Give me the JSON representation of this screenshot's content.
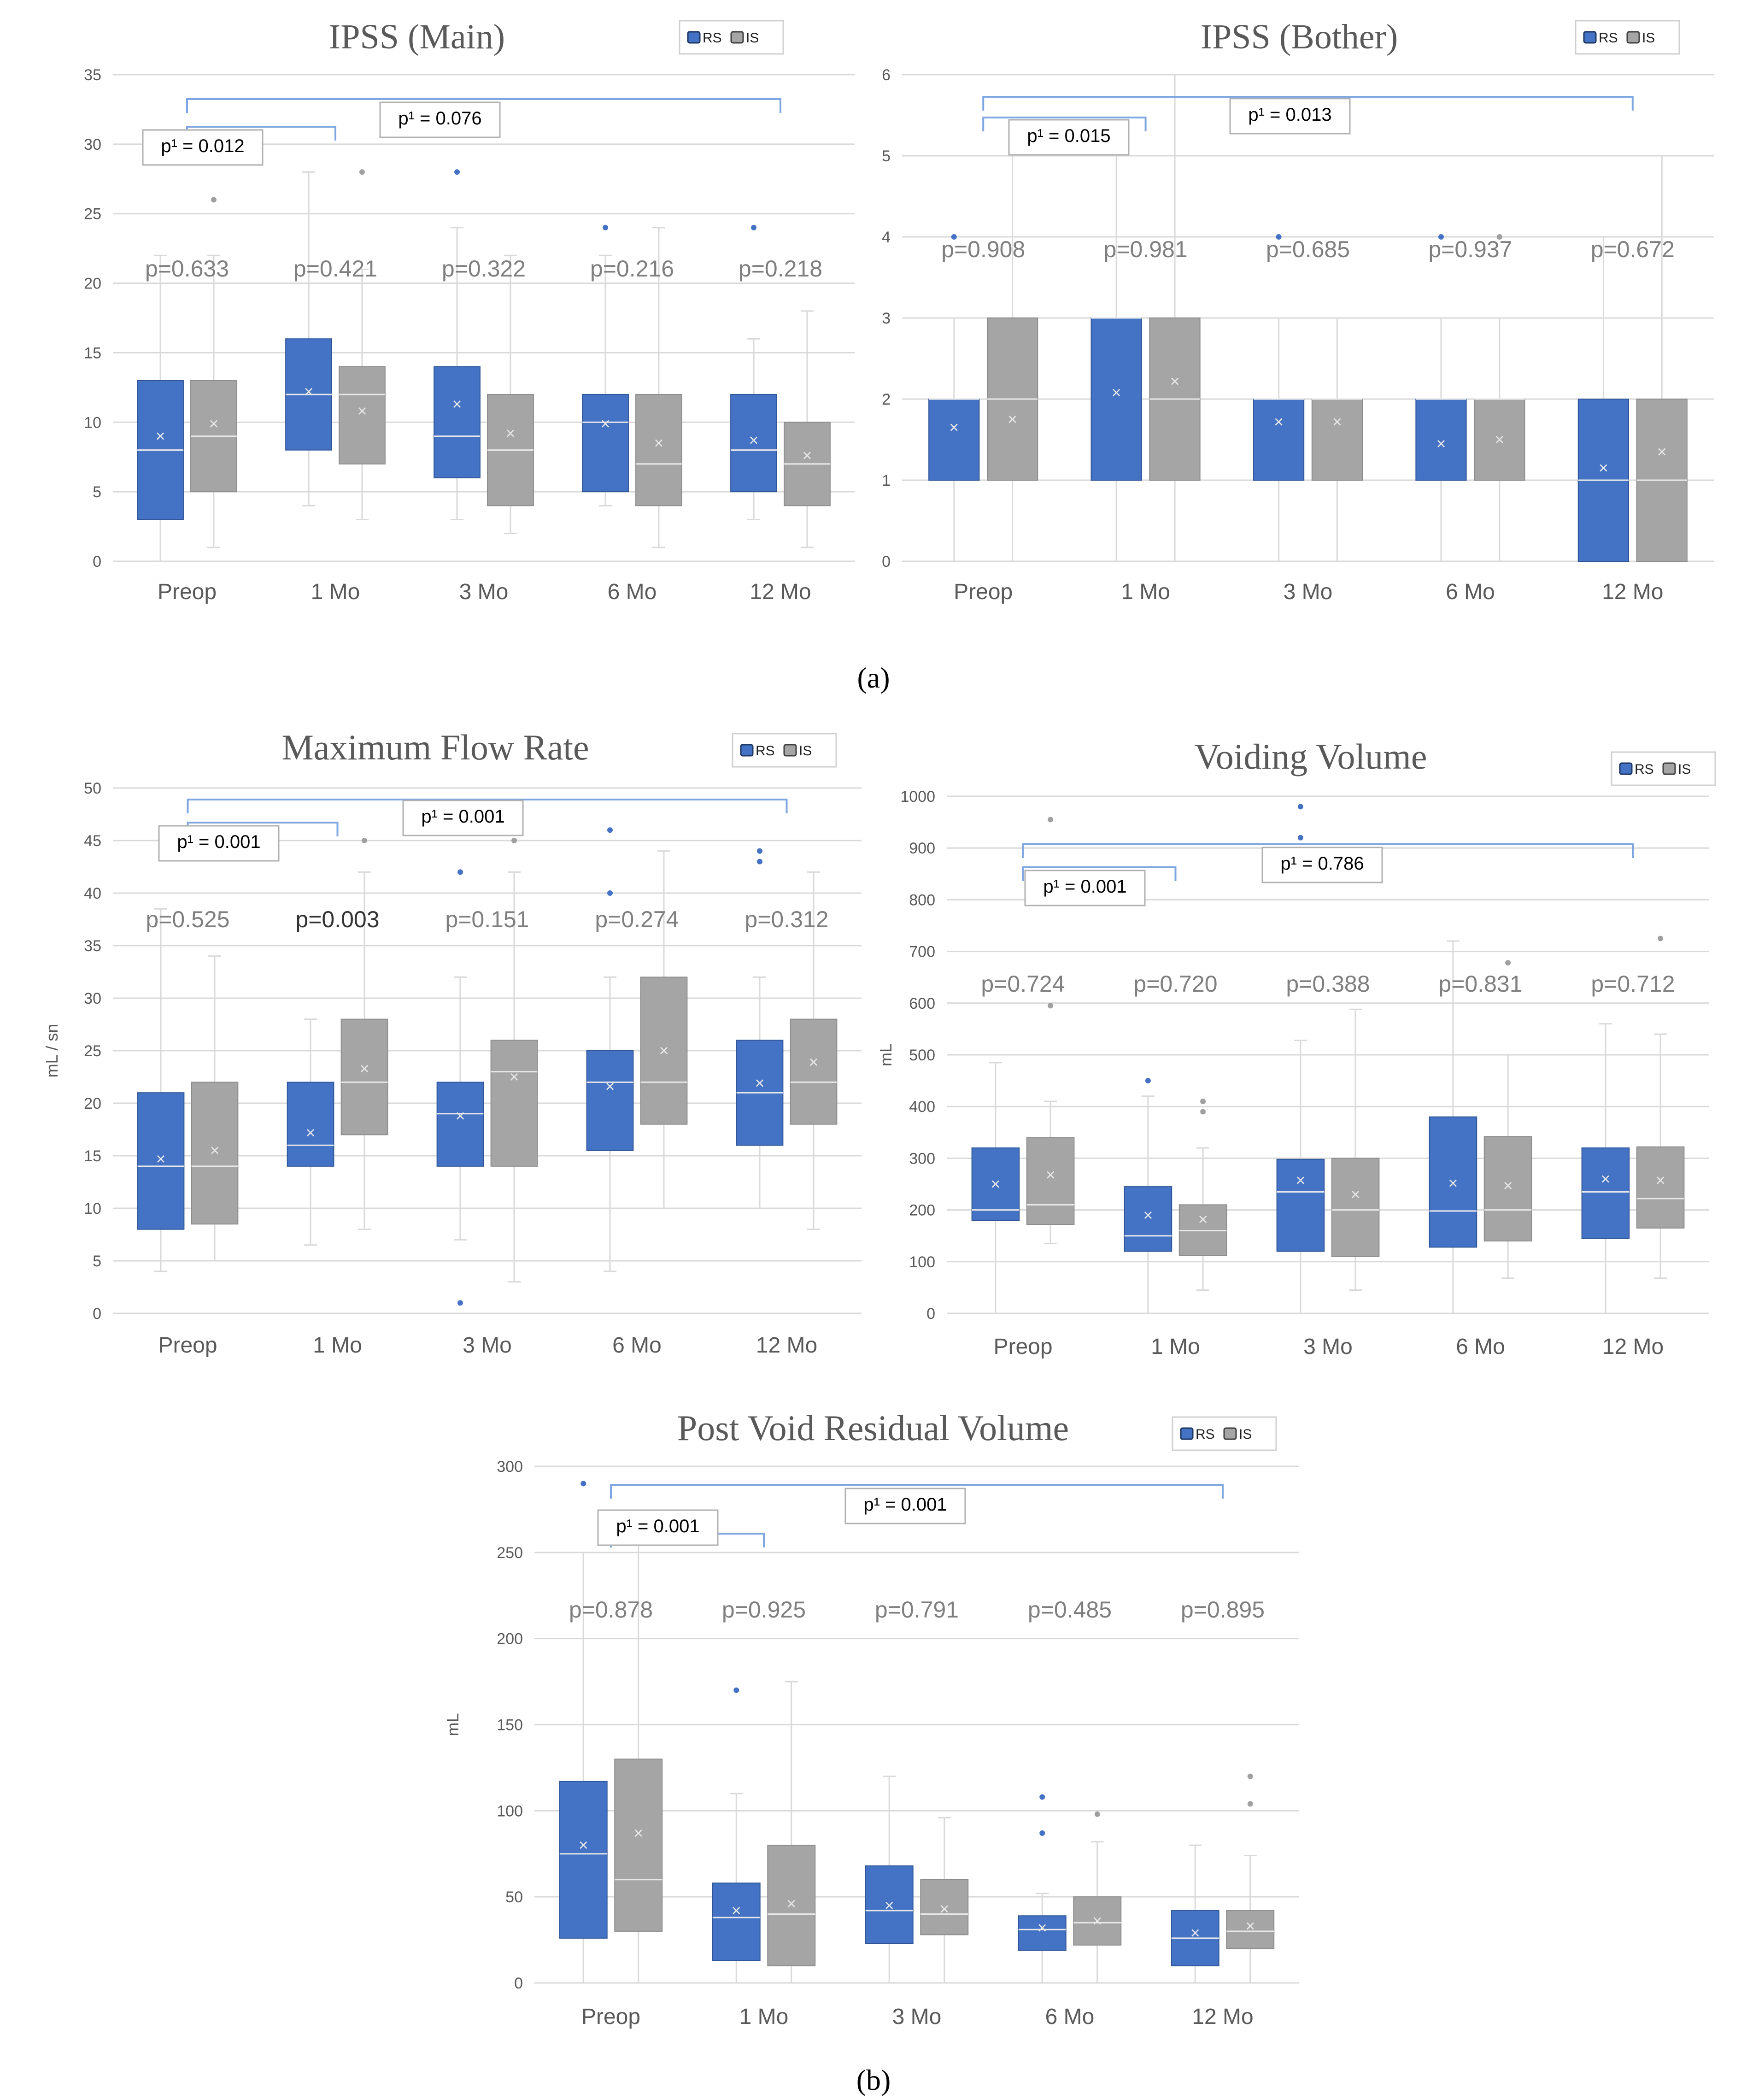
{
  "colors": {
    "rs": "#4472C4",
    "is": "#A5A5A5",
    "grid": "#D9D9D9",
    "axis": "#595959",
    "bracket": "#7EA6E0",
    "ptext": "#7F7F7F",
    "title": "#595959"
  },
  "panel_labels": {
    "a": "(a)",
    "b": "(b)"
  },
  "chart_data": [
    {
      "id": "ipss-main",
      "type": "box",
      "title": "IPSS (Main)",
      "ylabel": "",
      "ylim": [
        0,
        35
      ],
      "yticks": [
        "0",
        "5",
        "10",
        "15",
        "20",
        "25",
        "30",
        "35"
      ],
      "categories": [
        "Preop",
        "1 Mo",
        "3 Mo",
        "6 Mo",
        "12 Mo"
      ],
      "legend": [
        "RS",
        "IS"
      ],
      "pvalues": [
        "p=0.633",
        "p=0.421",
        "p=0.322",
        "p=0.216",
        "p=0.218"
      ],
      "brackets": [
        {
          "from": 0,
          "to": 1,
          "label": "p¹ = 0.012"
        },
        {
          "from": 0,
          "to": 4,
          "label": "p¹ = 0.076"
        }
      ],
      "series": [
        {
          "name": "RS",
          "boxes": [
            {
              "min": 0,
              "q1": 3,
              "median": 8,
              "q3": 13,
              "max": 22,
              "mean": 9,
              "outliers": []
            },
            {
              "min": 4,
              "q1": 8,
              "median": 12,
              "q3": 16,
              "max": 28,
              "mean": 12.2,
              "outliers": []
            },
            {
              "min": 3,
              "q1": 6,
              "median": 9,
              "q3": 14,
              "max": 24,
              "mean": 11.3,
              "outliers": [
                28
              ]
            },
            {
              "min": 4,
              "q1": 5,
              "median": 10,
              "q3": 12,
              "max": 22,
              "mean": 9.9,
              "outliers": [
                24
              ]
            },
            {
              "min": 3,
              "q1": 5,
              "median": 8,
              "q3": 12,
              "max": 16,
              "mean": 8.7,
              "outliers": [
                24
              ]
            }
          ]
        },
        {
          "name": "IS",
          "boxes": [
            {
              "min": 1,
              "q1": 5,
              "median": 9,
              "q3": 13,
              "max": 22,
              "mean": 9.9,
              "outliers": [
                26
              ]
            },
            {
              "min": 3,
              "q1": 7,
              "median": 12,
              "q3": 14,
              "max": 21,
              "mean": 10.8,
              "outliers": [
                28
              ]
            },
            {
              "min": 2,
              "q1": 4,
              "median": 8,
              "q3": 12,
              "max": 22,
              "mean": 9.2,
              "outliers": []
            },
            {
              "min": 1,
              "q1": 4,
              "median": 7,
              "q3": 12,
              "max": 24,
              "mean": 8.5,
              "outliers": []
            },
            {
              "min": 1,
              "q1": 4,
              "median": 7,
              "q3": 10,
              "max": 18,
              "mean": 7.6,
              "outliers": []
            }
          ]
        }
      ]
    },
    {
      "id": "ipss-bother",
      "type": "box",
      "title": "IPSS (Bother)",
      "ylabel": "",
      "ylim": [
        0,
        6
      ],
      "yticks": [
        "0",
        "1",
        "2",
        "3",
        "4",
        "5",
        "6"
      ],
      "categories": [
        "Preop",
        "1 Mo",
        "3 Mo",
        "6 Mo",
        "12 Mo"
      ],
      "legend": [
        "RS",
        "IS"
      ],
      "pvalues": [
        "p=0.908",
        "p=0.981",
        "p=0.685",
        "p=0.937",
        "p=0.672"
      ],
      "brackets": [
        {
          "from": 0,
          "to": 1,
          "label": "p¹ = 0.015"
        },
        {
          "from": 0,
          "to": 4,
          "label": "p¹ = 0.013"
        }
      ],
      "series": [
        {
          "name": "RS",
          "boxes": [
            {
              "min": 0,
              "q1": 1,
              "median": 2,
              "q3": 2,
              "max": 3,
              "mean": 1.65,
              "outliers": [
                4
              ]
            },
            {
              "min": 0,
              "q1": 1,
              "median": 3,
              "q3": 3,
              "max": 5,
              "mean": 2.08,
              "outliers": []
            },
            {
              "min": 0,
              "q1": 1,
              "median": 2,
              "q3": 2,
              "max": 3,
              "mean": 1.72,
              "outliers": [
                4
              ]
            },
            {
              "min": 0,
              "q1": 1,
              "median": 2,
              "q3": 2,
              "max": 3,
              "mean": 1.45,
              "outliers": [
                4
              ]
            },
            {
              "min": 0,
              "q1": 0,
              "median": 1,
              "q3": 2,
              "max": 4,
              "mean": 1.15,
              "outliers": []
            }
          ]
        },
        {
          "name": "IS",
          "boxes": [
            {
              "min": 0,
              "q1": 1,
              "median": 2,
              "q3": 3,
              "max": 5,
              "mean": 1.75,
              "outliers": []
            },
            {
              "min": 0,
              "q1": 1,
              "median": 2,
              "q3": 3,
              "max": 6,
              "mean": 2.22,
              "outliers": []
            },
            {
              "min": 0,
              "q1": 1,
              "median": 2,
              "q3": 2,
              "max": 3,
              "mean": 1.72,
              "outliers": []
            },
            {
              "min": 0,
              "q1": 1,
              "median": 2,
              "q3": 2,
              "max": 3,
              "mean": 1.5,
              "outliers": [
                4
              ]
            },
            {
              "min": 0,
              "q1": 0,
              "median": 1,
              "q3": 2,
              "max": 5,
              "mean": 1.35,
              "outliers": []
            }
          ]
        }
      ]
    },
    {
      "id": "max-flow-rate",
      "type": "box",
      "title": "Maximum Flow Rate",
      "ylabel": "mL / sn",
      "ylim": [
        0,
        50
      ],
      "yticks": [
        "0",
        "5",
        "10",
        "15",
        "20",
        "25",
        "30",
        "35",
        "40",
        "45",
        "50"
      ],
      "categories": [
        "Preop",
        "1 Mo",
        "3 Mo",
        "6 Mo",
        "12 Mo"
      ],
      "legend": [
        "RS",
        "IS"
      ],
      "pvalues": [
        "p=0.525",
        "p=0.003",
        "p=0.151",
        "p=0.274",
        "p=0.312"
      ],
      "brackets": [
        {
          "from": 0,
          "to": 1,
          "label": "p¹ = 0.001"
        },
        {
          "from": 0,
          "to": 4,
          "label": "p¹ = 0.001"
        }
      ],
      "series": [
        {
          "name": "RS",
          "boxes": [
            {
              "min": 4,
              "q1": 8,
              "median": 14,
              "q3": 21,
              "max": 38.5,
              "mean": 14.7,
              "outliers": []
            },
            {
              "min": 6.5,
              "q1": 14,
              "median": 16,
              "q3": 22,
              "max": 28,
              "mean": 17.2,
              "outliers": []
            },
            {
              "min": 7,
              "q1": 14,
              "median": 19,
              "q3": 22,
              "max": 32,
              "mean": 18.8,
              "outliers": [
                42,
                1
              ]
            },
            {
              "min": 4,
              "q1": 15.5,
              "median": 22,
              "q3": 25,
              "max": 32,
              "mean": 21.6,
              "outliers": [
                46,
                40
              ]
            },
            {
              "min": 10,
              "q1": 16,
              "median": 21,
              "q3": 26,
              "max": 32,
              "mean": 21.9,
              "outliers": [
                44,
                43
              ]
            }
          ]
        },
        {
          "name": "IS",
          "boxes": [
            {
              "min": 5,
              "q1": 8.5,
              "median": 14,
              "q3": 22,
              "max": 34,
              "mean": 15.5,
              "outliers": []
            },
            {
              "min": 8,
              "q1": 17,
              "median": 22,
              "q3": 28,
              "max": 42,
              "mean": 23.3,
              "outliers": [
                45
              ]
            },
            {
              "min": 3,
              "q1": 14,
              "median": 23,
              "q3": 26,
              "max": 42,
              "mean": 22.5,
              "outliers": [
                45
              ]
            },
            {
              "min": 10,
              "q1": 18,
              "median": 22,
              "q3": 32,
              "max": 44,
              "mean": 25,
              "outliers": []
            },
            {
              "min": 8,
              "q1": 18,
              "median": 22,
              "q3": 28,
              "max": 42,
              "mean": 23.9,
              "outliers": []
            }
          ]
        }
      ]
    },
    {
      "id": "voiding-volume",
      "type": "box",
      "title": "Voiding Volume",
      "ylabel": "mL",
      "ylim": [
        0,
        1000
      ],
      "yticks": [
        "0",
        "100",
        "200",
        "300",
        "400",
        "500",
        "600",
        "700",
        "800",
        "900",
        "1000"
      ],
      "categories": [
        "Preop",
        "1 Mo",
        "3 Mo",
        "6 Mo",
        "12 Mo"
      ],
      "legend": [
        "RS",
        "IS"
      ],
      "pvalues": [
        "p=0.724",
        "p=0.720",
        "p=0.388",
        "p=0.831",
        "p=0.712"
      ],
      "brackets": [
        {
          "from": 0,
          "to": 1,
          "label": "p¹ = 0.001"
        },
        {
          "from": 0,
          "to": 4,
          "label": "p¹ = 0.786"
        }
      ],
      "series": [
        {
          "name": "RS",
          "boxes": [
            {
              "min": 0,
              "q1": 180,
              "median": 200,
              "q3": 320,
              "max": 485,
              "mean": 250,
              "outliers": []
            },
            {
              "min": 0,
              "q1": 120,
              "median": 150,
              "q3": 245,
              "max": 420,
              "mean": 190,
              "outliers": [
                450
              ]
            },
            {
              "min": 0,
              "q1": 120,
              "median": 235,
              "q3": 298,
              "max": 528,
              "mean": 257,
              "outliers": [
                980,
                920
              ]
            },
            {
              "min": 0,
              "q1": 128,
              "median": 198,
              "q3": 380,
              "max": 720,
              "mean": 252,
              "outliers": []
            },
            {
              "min": 0,
              "q1": 145,
              "median": 235,
              "q3": 320,
              "max": 560,
              "mean": 260,
              "outliers": []
            }
          ]
        },
        {
          "name": "IS",
          "boxes": [
            {
              "min": 135,
              "q1": 172,
              "median": 210,
              "q3": 340,
              "max": 410,
              "mean": 268,
              "outliers": [
                955,
                595
              ]
            },
            {
              "min": 45,
              "q1": 112,
              "median": 160,
              "q3": 210,
              "max": 320,
              "mean": 182,
              "outliers": [
                410,
                390
              ]
            },
            {
              "min": 45,
              "q1": 110,
              "median": 200,
              "q3": 300,
              "max": 588,
              "mean": 230,
              "outliers": []
            },
            {
              "min": 68,
              "q1": 140,
              "median": 200,
              "q3": 342,
              "max": 500,
              "mean": 247,
              "outliers": [
                678
              ]
            },
            {
              "min": 68,
              "q1": 165,
              "median": 222,
              "q3": 322,
              "max": 540,
              "mean": 257,
              "outliers": [
                725
              ]
            }
          ]
        }
      ]
    },
    {
      "id": "post-void-residual",
      "type": "box",
      "title": "Post Void Residual Volume",
      "ylabel": "mL",
      "ylim": [
        0,
        300
      ],
      "yticks": [
        "0",
        "50",
        "100",
        "150",
        "200",
        "250",
        "300"
      ],
      "categories": [
        "Preop",
        "1 Mo",
        "3 Mo",
        "6 Mo",
        "12 Mo"
      ],
      "legend": [
        "RS",
        "IS"
      ],
      "pvalues": [
        "p=0.878",
        "p=0.925",
        "p=0.791",
        "p=0.485",
        "p=0.895"
      ],
      "brackets": [
        {
          "from": 0,
          "to": 1,
          "label": "p¹ = 0.001"
        },
        {
          "from": 0,
          "to": 4,
          "label": "p¹ = 0.001"
        }
      ],
      "series": [
        {
          "name": "RS",
          "boxes": [
            {
              "min": 0,
              "q1": 26,
              "median": 75,
              "q3": 117,
              "max": 250,
              "mean": 80,
              "outliers": [
                290
              ]
            },
            {
              "min": 0,
              "q1": 13,
              "median": 38,
              "q3": 58,
              "max": 110,
              "mean": 42,
              "outliers": [
                170
              ]
            },
            {
              "min": 0,
              "q1": 23,
              "median": 42,
              "q3": 68,
              "max": 120,
              "mean": 45,
              "outliers": []
            },
            {
              "min": 0,
              "q1": 19,
              "median": 31,
              "q3": 39,
              "max": 52,
              "mean": 32,
              "outliers": [
                108,
                87
              ]
            },
            {
              "min": 0,
              "q1": 10,
              "median": 26,
              "q3": 42,
              "max": 80,
              "mean": 29,
              "outliers": []
            }
          ]
        },
        {
          "name": "IS",
          "boxes": [
            {
              "min": 0,
              "q1": 30,
              "median": 60,
              "q3": 130,
              "max": 258,
              "mean": 87,
              "outliers": []
            },
            {
              "min": 0,
              "q1": 10,
              "median": 40,
              "q3": 80,
              "max": 175,
              "mean": 46,
              "outliers": []
            },
            {
              "min": 0,
              "q1": 28,
              "median": 40,
              "q3": 60,
              "max": 96,
              "mean": 43,
              "outliers": []
            },
            {
              "min": 0,
              "q1": 22,
              "median": 35,
              "q3": 50,
              "max": 82,
              "mean": 36,
              "outliers": [
                98
              ]
            },
            {
              "min": 0,
              "q1": 20,
              "median": 30,
              "q3": 42,
              "max": 74,
              "mean": 33,
              "outliers": [
                120,
                104
              ]
            }
          ]
        }
      ]
    }
  ]
}
